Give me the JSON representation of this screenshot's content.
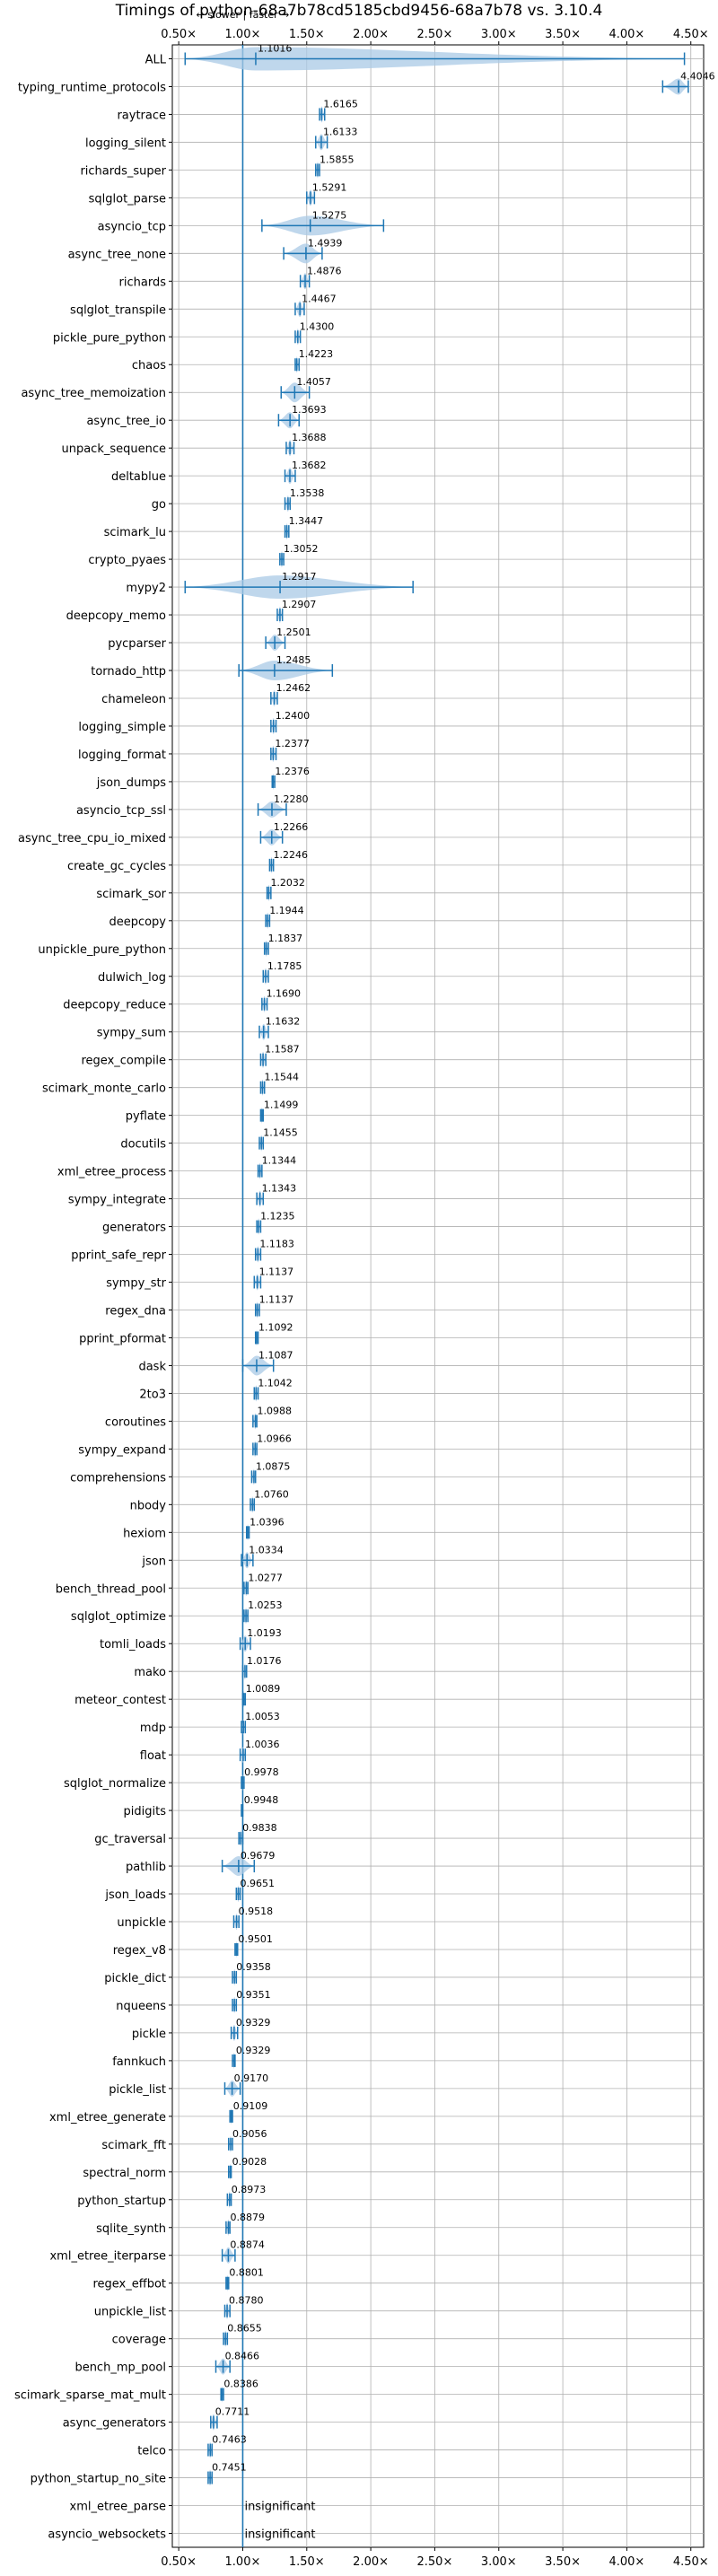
{
  "chart_data": {
    "type": "violin",
    "title": "Timings of python-68a7b78cd5185cbd9456-68a7b78 vs. 3.10.4",
    "direction_label": "← slower | faster →",
    "x_ticks": [
      "0.50×",
      "1.00×",
      "1.50×",
      "2.00×",
      "2.50×",
      "3.00×",
      "3.50×",
      "4.00×",
      "4.50×"
    ],
    "x_tick_values": [
      0.5,
      1.0,
      1.5,
      2.0,
      2.5,
      3.0,
      3.5,
      4.0,
      4.5
    ],
    "xlim": [
      0.45,
      4.6
    ],
    "reference_line": 1.0,
    "grid": true,
    "colors": {
      "violin": "#a9c9e6",
      "whisker": "#1f77b4",
      "grid": "#b0b0b0",
      "reference": "#1f77b4"
    },
    "insignificant_text": "insignificant",
    "benchmarks": [
      {
        "name": "ALL",
        "value": 1.1016,
        "label": "1.1016",
        "lo": 0.55,
        "hi": 4.45,
        "spread": "wide"
      },
      {
        "name": "typing_runtime_protocols",
        "value": 4.4046,
        "label": "4.4046",
        "lo": 4.28,
        "hi": 4.48,
        "spread": "small"
      },
      {
        "name": "raytrace",
        "value": 1.6165,
        "label": "1.6165",
        "lo": 1.6,
        "hi": 1.64
      },
      {
        "name": "logging_silent",
        "value": 1.6133,
        "label": "1.6133",
        "lo": 1.57,
        "hi": 1.66
      },
      {
        "name": "richards_super",
        "value": 1.5855,
        "label": "1.5855",
        "lo": 1.57,
        "hi": 1.6
      },
      {
        "name": "sqlglot_parse",
        "value": 1.5291,
        "label": "1.5291",
        "lo": 1.5,
        "hi": 1.56
      },
      {
        "name": "asyncio_tcp",
        "value": 1.5275,
        "label": "1.5275",
        "lo": 1.15,
        "hi": 2.1,
        "spread": "medium"
      },
      {
        "name": "async_tree_none",
        "value": 1.4939,
        "label": "1.4939",
        "lo": 1.32,
        "hi": 1.62,
        "spread": "medium"
      },
      {
        "name": "richards",
        "value": 1.4876,
        "label": "1.4876",
        "lo": 1.45,
        "hi": 1.52
      },
      {
        "name": "sqlglot_transpile",
        "value": 1.4467,
        "label": "1.4467",
        "lo": 1.41,
        "hi": 1.48
      },
      {
        "name": "pickle_pure_python",
        "value": 1.43,
        "label": "1.4300",
        "lo": 1.41,
        "hi": 1.45
      },
      {
        "name": "chaos",
        "value": 1.4223,
        "label": "1.4223",
        "lo": 1.41,
        "hi": 1.44
      },
      {
        "name": "async_tree_memoization",
        "value": 1.4057,
        "label": "1.4057",
        "lo": 1.3,
        "hi": 1.52,
        "spread": "medium"
      },
      {
        "name": "async_tree_io",
        "value": 1.3693,
        "label": "1.3693",
        "lo": 1.28,
        "hi": 1.44
      },
      {
        "name": "unpack_sequence",
        "value": 1.3688,
        "label": "1.3688",
        "lo": 1.34,
        "hi": 1.4
      },
      {
        "name": "deltablue",
        "value": 1.3682,
        "label": "1.3682",
        "lo": 1.33,
        "hi": 1.41
      },
      {
        "name": "go",
        "value": 1.3538,
        "label": "1.3538",
        "lo": 1.33,
        "hi": 1.37
      },
      {
        "name": "scimark_lu",
        "value": 1.3447,
        "label": "1.3447",
        "lo": 1.33,
        "hi": 1.36
      },
      {
        "name": "crypto_pyaes",
        "value": 1.3052,
        "label": "1.3052",
        "lo": 1.29,
        "hi": 1.32
      },
      {
        "name": "mypy2",
        "value": 1.2917,
        "label": "1.2917",
        "lo": 0.55,
        "hi": 2.33,
        "spread": "wide"
      },
      {
        "name": "deepcopy_memo",
        "value": 1.2907,
        "label": "1.2907",
        "lo": 1.27,
        "hi": 1.31
      },
      {
        "name": "pycparser",
        "value": 1.2501,
        "label": "1.2501",
        "lo": 1.18,
        "hi": 1.33
      },
      {
        "name": "tornado_http",
        "value": 1.2485,
        "label": "1.2485",
        "lo": 0.97,
        "hi": 1.7,
        "spread": "medium"
      },
      {
        "name": "chameleon",
        "value": 1.2462,
        "label": "1.2462",
        "lo": 1.22,
        "hi": 1.27
      },
      {
        "name": "logging_simple",
        "value": 1.24,
        "label": "1.2400",
        "lo": 1.22,
        "hi": 1.26
      },
      {
        "name": "logging_format",
        "value": 1.2377,
        "label": "1.2377",
        "lo": 1.22,
        "hi": 1.26
      },
      {
        "name": "json_dumps",
        "value": 1.2376,
        "label": "1.2376",
        "lo": 1.23,
        "hi": 1.25
      },
      {
        "name": "asyncio_tcp_ssl",
        "value": 1.228,
        "label": "1.2280",
        "lo": 1.12,
        "hi": 1.34
      },
      {
        "name": "async_tree_cpu_io_mixed",
        "value": 1.2266,
        "label": "1.2266",
        "lo": 1.14,
        "hi": 1.31
      },
      {
        "name": "create_gc_cycles",
        "value": 1.2246,
        "label": "1.2246",
        "lo": 1.21,
        "hi": 1.24
      },
      {
        "name": "scimark_sor",
        "value": 1.2032,
        "label": "1.2032",
        "lo": 1.19,
        "hi": 1.22
      },
      {
        "name": "deepcopy",
        "value": 1.1944,
        "label": "1.1944",
        "lo": 1.18,
        "hi": 1.21
      },
      {
        "name": "unpickle_pure_python",
        "value": 1.1837,
        "label": "1.1837",
        "lo": 1.17,
        "hi": 1.2
      },
      {
        "name": "dulwich_log",
        "value": 1.1785,
        "label": "1.1785",
        "lo": 1.16,
        "hi": 1.2
      },
      {
        "name": "deepcopy_reduce",
        "value": 1.169,
        "label": "1.1690",
        "lo": 1.15,
        "hi": 1.19
      },
      {
        "name": "sympy_sum",
        "value": 1.1632,
        "label": "1.1632",
        "lo": 1.13,
        "hi": 1.2
      },
      {
        "name": "regex_compile",
        "value": 1.1587,
        "label": "1.1587",
        "lo": 1.14,
        "hi": 1.18
      },
      {
        "name": "scimark_monte_carlo",
        "value": 1.1544,
        "label": "1.1544",
        "lo": 1.14,
        "hi": 1.17
      },
      {
        "name": "pyflate",
        "value": 1.1499,
        "label": "1.1499",
        "lo": 1.14,
        "hi": 1.16
      },
      {
        "name": "docutils",
        "value": 1.1455,
        "label": "1.1455",
        "lo": 1.13,
        "hi": 1.16
      },
      {
        "name": "xml_etree_process",
        "value": 1.1344,
        "label": "1.1344",
        "lo": 1.12,
        "hi": 1.15
      },
      {
        "name": "sympy_integrate",
        "value": 1.1343,
        "label": "1.1343",
        "lo": 1.11,
        "hi": 1.16
      },
      {
        "name": "generators",
        "value": 1.1235,
        "label": "1.1235",
        "lo": 1.11,
        "hi": 1.14
      },
      {
        "name": "pprint_safe_repr",
        "value": 1.1183,
        "label": "1.1183",
        "lo": 1.1,
        "hi": 1.14
      },
      {
        "name": "sympy_str",
        "value": 1.1137,
        "label": "1.1137",
        "lo": 1.09,
        "hi": 1.14
      },
      {
        "name": "regex_dna",
        "value": 1.1137,
        "label": "1.1137",
        "lo": 1.1,
        "hi": 1.13
      },
      {
        "name": "pprint_pformat",
        "value": 1.1092,
        "label": "1.1092",
        "lo": 1.1,
        "hi": 1.12
      },
      {
        "name": "dask",
        "value": 1.1087,
        "label": "1.1087",
        "lo": 1.0,
        "hi": 1.24,
        "spread": "medium"
      },
      {
        "name": "2to3",
        "value": 1.1042,
        "label": "1.1042",
        "lo": 1.09,
        "hi": 1.12
      },
      {
        "name": "coroutines",
        "value": 1.0988,
        "label": "1.0988",
        "lo": 1.08,
        "hi": 1.11
      },
      {
        "name": "sympy_expand",
        "value": 1.0966,
        "label": "1.0966",
        "lo": 1.08,
        "hi": 1.11
      },
      {
        "name": "comprehensions",
        "value": 1.0875,
        "label": "1.0875",
        "lo": 1.07,
        "hi": 1.1
      },
      {
        "name": "nbody",
        "value": 1.076,
        "label": "1.0760",
        "lo": 1.06,
        "hi": 1.09
      },
      {
        "name": "hexiom",
        "value": 1.0396,
        "label": "1.0396",
        "lo": 1.03,
        "hi": 1.05
      },
      {
        "name": "json",
        "value": 1.0334,
        "label": "1.0334",
        "lo": 0.99,
        "hi": 1.08
      },
      {
        "name": "bench_thread_pool",
        "value": 1.0277,
        "label": "1.0277",
        "lo": 1.01,
        "hi": 1.04
      },
      {
        "name": "sqlglot_optimize",
        "value": 1.0253,
        "label": "1.0253",
        "lo": 1.01,
        "hi": 1.04
      },
      {
        "name": "tomli_loads",
        "value": 1.0193,
        "label": "1.0193",
        "lo": 0.98,
        "hi": 1.06
      },
      {
        "name": "mako",
        "value": 1.0176,
        "label": "1.0176",
        "lo": 1.0,
        "hi": 1.03
      },
      {
        "name": "meteor_contest",
        "value": 1.0089,
        "label": "1.0089",
        "lo": 1.0,
        "hi": 1.02
      },
      {
        "name": "mdp",
        "value": 1.0053,
        "label": "1.0053",
        "lo": 0.99,
        "hi": 1.02
      },
      {
        "name": "float",
        "value": 1.0036,
        "label": "1.0036",
        "lo": 0.98,
        "hi": 1.02
      },
      {
        "name": "sqlglot_normalize",
        "value": 0.9978,
        "label": "0.9978",
        "lo": 0.99,
        "hi": 1.01
      },
      {
        "name": "pidigits",
        "value": 0.9948,
        "label": "0.9948",
        "lo": 0.99,
        "hi": 1.0
      },
      {
        "name": "gc_traversal",
        "value": 0.9838,
        "label": "0.9838",
        "lo": 0.97,
        "hi": 1.0
      },
      {
        "name": "pathlib",
        "value": 0.9679,
        "label": "0.9679",
        "lo": 0.84,
        "hi": 1.09,
        "spread": "medium"
      },
      {
        "name": "json_loads",
        "value": 0.9651,
        "label": "0.9651",
        "lo": 0.95,
        "hi": 0.98
      },
      {
        "name": "unpickle",
        "value": 0.9518,
        "label": "0.9518",
        "lo": 0.93,
        "hi": 0.97
      },
      {
        "name": "regex_v8",
        "value": 0.9501,
        "label": "0.9501",
        "lo": 0.94,
        "hi": 0.96
      },
      {
        "name": "pickle_dict",
        "value": 0.9358,
        "label": "0.9358",
        "lo": 0.92,
        "hi": 0.95
      },
      {
        "name": "nqueens",
        "value": 0.9351,
        "label": "0.9351",
        "lo": 0.92,
        "hi": 0.95
      },
      {
        "name": "pickle",
        "value": 0.9329,
        "label": "0.9329",
        "lo": 0.91,
        "hi": 0.96
      },
      {
        "name": "fannkuch",
        "value": 0.9329,
        "label": "0.9329",
        "lo": 0.92,
        "hi": 0.94
      },
      {
        "name": "pickle_list",
        "value": 0.917,
        "label": "0.9170",
        "lo": 0.86,
        "hi": 0.98
      },
      {
        "name": "xml_etree_generate",
        "value": 0.9109,
        "label": "0.9109",
        "lo": 0.9,
        "hi": 0.92
      },
      {
        "name": "scimark_fft",
        "value": 0.9056,
        "label": "0.9056",
        "lo": 0.89,
        "hi": 0.92
      },
      {
        "name": "spectral_norm",
        "value": 0.9028,
        "label": "0.9028",
        "lo": 0.89,
        "hi": 0.91
      },
      {
        "name": "python_startup",
        "value": 0.8973,
        "label": "0.8973",
        "lo": 0.88,
        "hi": 0.91
      },
      {
        "name": "sqlite_synth",
        "value": 0.8879,
        "label": "0.8879",
        "lo": 0.87,
        "hi": 0.9
      },
      {
        "name": "xml_etree_iterparse",
        "value": 0.8874,
        "label": "0.8874",
        "lo": 0.84,
        "hi": 0.94
      },
      {
        "name": "regex_effbot",
        "value": 0.8801,
        "label": "0.8801",
        "lo": 0.87,
        "hi": 0.89
      },
      {
        "name": "unpickle_list",
        "value": 0.878,
        "label": "0.8780",
        "lo": 0.86,
        "hi": 0.9
      },
      {
        "name": "coverage",
        "value": 0.8655,
        "label": "0.8655",
        "lo": 0.85,
        "hi": 0.88
      },
      {
        "name": "bench_mp_pool",
        "value": 0.8466,
        "label": "0.8466",
        "lo": 0.79,
        "hi": 0.9
      },
      {
        "name": "scimark_sparse_mat_mult",
        "value": 0.8386,
        "label": "0.8386",
        "lo": 0.83,
        "hi": 0.85
      },
      {
        "name": "async_generators",
        "value": 0.7711,
        "label": "0.7711",
        "lo": 0.75,
        "hi": 0.8
      },
      {
        "name": "telco",
        "value": 0.7463,
        "label": "0.7463",
        "lo": 0.73,
        "hi": 0.76
      },
      {
        "name": "python_startup_no_site",
        "value": 0.7451,
        "label": "0.7451",
        "lo": 0.73,
        "hi": 0.76
      },
      {
        "name": "xml_etree_parse",
        "value": null,
        "label": "insignificant"
      },
      {
        "name": "asyncio_websockets",
        "value": null,
        "label": "insignificant"
      }
    ]
  }
}
